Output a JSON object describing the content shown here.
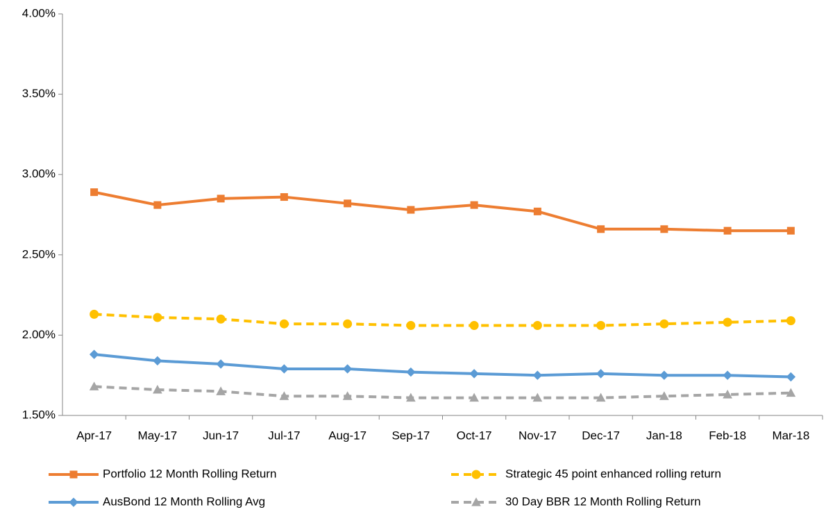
{
  "chart_data": {
    "type": "line",
    "categories": [
      "Apr-17",
      "May-17",
      "Jun-17",
      "Jul-17",
      "Aug-17",
      "Sep-17",
      "Oct-17",
      "Nov-17",
      "Dec-17",
      "Jan-18",
      "Feb-18",
      "Mar-18"
    ],
    "series": [
      {
        "name": "Portfolio 12 Month Rolling Return",
        "color": "#ed7d31",
        "marker": "square",
        "dash": false,
        "values": [
          2.89,
          2.81,
          2.85,
          2.86,
          2.82,
          2.78,
          2.81,
          2.77,
          2.66,
          2.66,
          2.65,
          2.65
        ]
      },
      {
        "name": "Strategic 45 point enhanced rolling return",
        "color": "#ffc000",
        "marker": "circle",
        "dash": true,
        "values": [
          2.13,
          2.11,
          2.1,
          2.07,
          2.07,
          2.06,
          2.06,
          2.06,
          2.06,
          2.07,
          2.08,
          2.09
        ]
      },
      {
        "name": "AusBond 12 Month Rolling Avg",
        "color": "#5b9bd5",
        "marker": "diamond",
        "dash": false,
        "values": [
          1.88,
          1.84,
          1.82,
          1.79,
          1.79,
          1.77,
          1.76,
          1.75,
          1.76,
          1.75,
          1.75,
          1.74
        ]
      },
      {
        "name": "30 Day BBR 12 Month Rolling Return",
        "color": "#a5a5a5",
        "marker": "triangle",
        "dash": true,
        "values": [
          1.68,
          1.66,
          1.65,
          1.62,
          1.62,
          1.61,
          1.61,
          1.61,
          1.61,
          1.62,
          1.63,
          1.64
        ]
      }
    ],
    "ylim": [
      1.5,
      4
    ],
    "yticks": [
      {
        "value": 1.5,
        "label": "1.50%"
      },
      {
        "value": 2,
        "label": "2.00%"
      },
      {
        "value": 2.5,
        "label": "2.50%"
      },
      {
        "value": 3,
        "label": "3.00%"
      },
      {
        "value": 3.5,
        "label": "3.50%"
      },
      {
        "value": 4,
        "label": "4.00%"
      }
    ],
    "grid": false,
    "legend": "bottom"
  }
}
